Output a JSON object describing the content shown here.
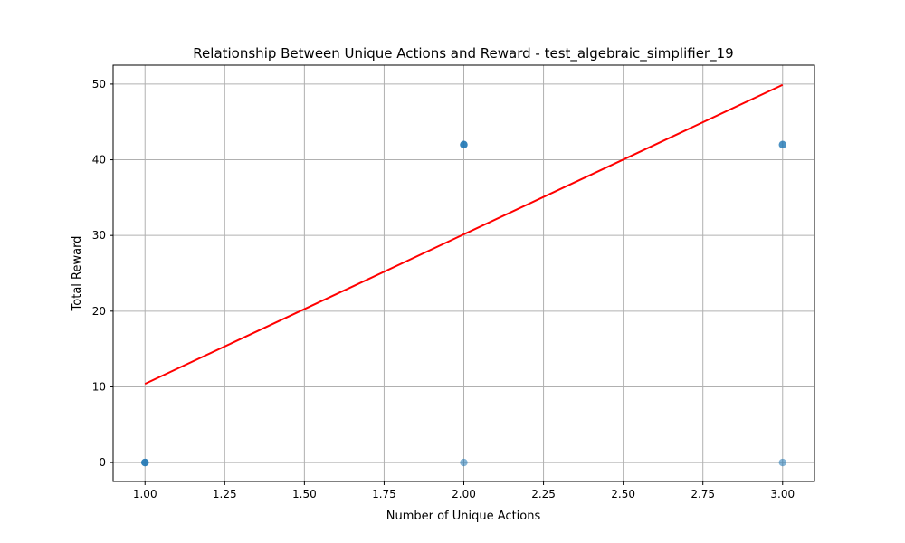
{
  "chart_data": {
    "type": "scatter",
    "title": "Relationship Between Unique Actions and Reward - test_algebraic_simplifier_19",
    "xlabel": "Number of Unique Actions",
    "ylabel": "Total Reward",
    "xlim": [
      0.9,
      3.1
    ],
    "ylim": [
      -2.5,
      52.5
    ],
    "x_ticks": [
      1.0,
      1.25,
      1.5,
      1.75,
      2.0,
      2.25,
      2.5,
      2.75,
      3.0
    ],
    "x_tick_labels": [
      "1.00",
      "1.25",
      "1.50",
      "1.75",
      "2.00",
      "2.25",
      "2.50",
      "2.75",
      "3.00"
    ],
    "y_ticks": [
      0,
      10,
      20,
      30,
      40,
      50
    ],
    "y_tick_labels": [
      "0",
      "10",
      "20",
      "30",
      "40",
      "50"
    ],
    "grid": true,
    "points": [
      {
        "x": 1.0,
        "y": 0
      },
      {
        "x": 1.0,
        "y": 0
      },
      {
        "x": 1.0,
        "y": 0
      },
      {
        "x": 2.0,
        "y": 42
      },
      {
        "x": 2.0,
        "y": 42
      },
      {
        "x": 2.0,
        "y": 42
      },
      {
        "x": 2.0,
        "y": 0
      },
      {
        "x": 3.0,
        "y": 42
      },
      {
        "x": 3.0,
        "y": 42
      },
      {
        "x": 3.0,
        "y": 0
      }
    ],
    "trendline": {
      "x": [
        1.0,
        3.0
      ],
      "y": [
        10.4,
        49.9
      ]
    },
    "colors": {
      "points": "#1f77b4",
      "trendline": "#ff0000",
      "grid": "#b0b0b0"
    }
  }
}
